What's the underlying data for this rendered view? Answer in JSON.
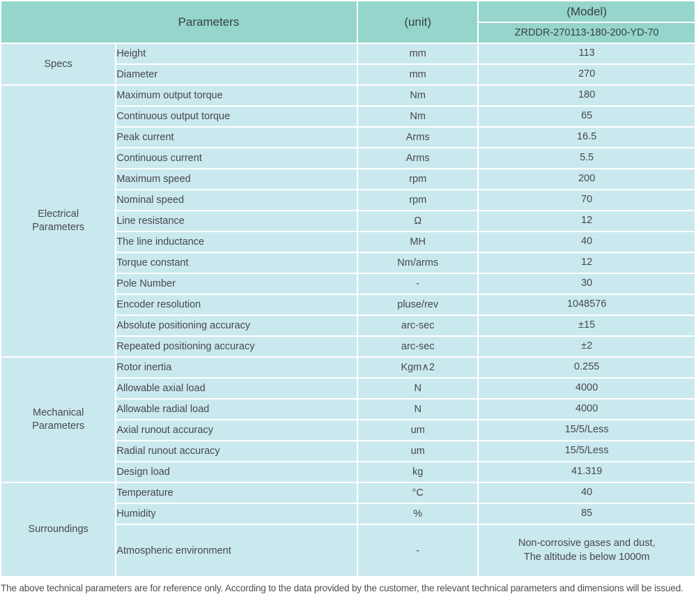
{
  "header": {
    "parameters_label": "Parameters",
    "unit_label": "(unit)",
    "model_label": "(Model)",
    "model_value": "ZRDDR-270113-180-200-YD-70"
  },
  "sections": [
    {
      "category": "Specs",
      "rows": [
        {
          "param": "Height",
          "unit": "mm",
          "value": "113"
        },
        {
          "param": "Diameter",
          "unit": "mm",
          "value": "270"
        }
      ]
    },
    {
      "category": "Electrical\nParameters",
      "rows": [
        {
          "param": "Maximum output torque",
          "unit": "Nm",
          "value": "180"
        },
        {
          "param": "Continuous output torque",
          "unit": "Nm",
          "value": "65"
        },
        {
          "param": "Peak current",
          "unit": "Arms",
          "value": "16.5"
        },
        {
          "param": "Continuous current",
          "unit": "Arms",
          "value": "5.5"
        },
        {
          "param": "Maximum speed",
          "unit": "rpm",
          "value": "200"
        },
        {
          "param": "Nominal speed",
          "unit": "rpm",
          "value": "70"
        },
        {
          "param": "Line resistance",
          "unit": "Ω",
          "value": "12"
        },
        {
          "param": "The line inductance",
          "unit": "MH",
          "value": "40"
        },
        {
          "param": "Torque constant",
          "unit": "Nm/arms",
          "value": "12"
        },
        {
          "param": "Pole Number",
          "unit": "-",
          "value": "30"
        },
        {
          "param": "Encoder resolution",
          "unit": "pluse/rev",
          "value": "1048576"
        },
        {
          "param": "Absolute positioning accuracy",
          "unit": "arc-sec",
          "value": "±15"
        },
        {
          "param": "Repeated positioning accuracy",
          "unit": "arc-sec",
          "value": "±2"
        }
      ]
    },
    {
      "category": "Mechanical\nParameters",
      "rows": [
        {
          "param": "Rotor inertia",
          "unit": "Kgm∧2",
          "value": "0.255"
        },
        {
          "param": "Allowable axial load",
          "unit": "N",
          "value": "4000"
        },
        {
          "param": "Allowable radial load",
          "unit": "N",
          "value": "4000"
        },
        {
          "param": "Axial runout accuracy",
          "unit": "um",
          "value": "15/5/Less"
        },
        {
          "param": "Radial runout accuracy",
          "unit": "um",
          "value": "15/5/Less"
        },
        {
          "param": "Design load",
          "unit": "kg",
          "value": "41.319"
        }
      ]
    },
    {
      "category": "Surroundings",
      "rows": [
        {
          "param": "Temperature",
          "unit": "°C",
          "value": "40"
        },
        {
          "param": "Humidity",
          "unit": "%",
          "value": "85"
        },
        {
          "param": "Atmospheric environment",
          "unit": "-",
          "value": "Non-corrosive gases and dust,\nThe altitude is below 1000m"
        }
      ]
    }
  ],
  "footer": {
    "note": "The above technical parameters are for reference only. According to the data provided by the customer, the relevant technical parameters and dimensions will be issued."
  },
  "colors": {
    "header_bg": "#95d5cb",
    "body_bg": "#cae9ef"
  }
}
